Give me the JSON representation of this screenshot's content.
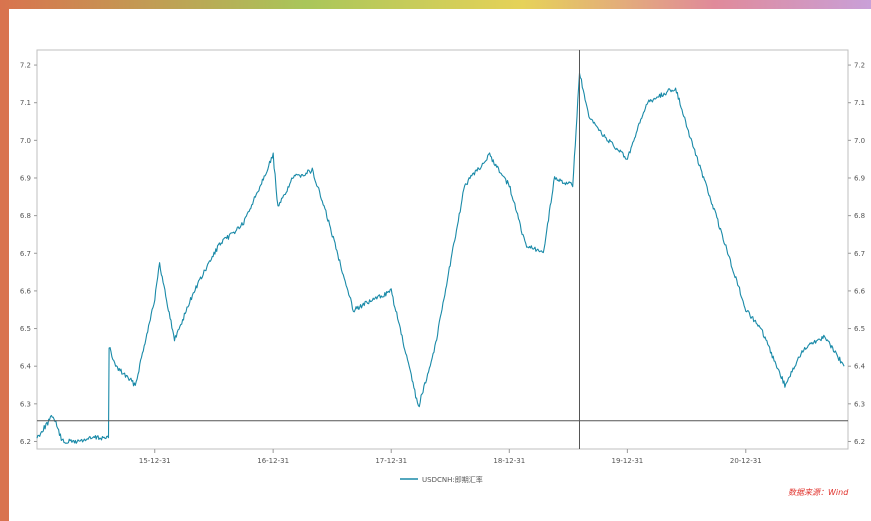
{
  "source_note": "数据来源：Wind",
  "colors": {
    "line": "#1a8aa8",
    "crosshair": "#555555",
    "frame_stripe_start": "#d9734e",
    "frame_stripe_end": "#c9a0d8",
    "source_note": "#e0302a"
  },
  "chart_data": {
    "type": "line",
    "title": "",
    "xlabel": "",
    "ylabel": "",
    "ylim": [
      6.18,
      7.24
    ],
    "y_ticks": [
      "6.2",
      "6.3",
      "6.4",
      "6.5",
      "6.6",
      "6.7",
      "6.8",
      "6.9",
      "7.0",
      "7.1",
      "7.2"
    ],
    "y_ticks_right": [
      "6.2",
      "6.3",
      "6.4",
      "6.5",
      "6.6",
      "6.7",
      "6.8",
      "6.9",
      "7.0",
      "7.1",
      "7.2"
    ],
    "x_ticks": [
      "15-12-31",
      "16-12-31",
      "17-12-31",
      "18-12-31",
      "19-12-31",
      "20-12-31"
    ],
    "grid": false,
    "legend_position": "bottom-center",
    "crosshair": {
      "x": "2019-08-05",
      "y": 6.255
    },
    "series": [
      {
        "name": "USDCNH:即期汇率",
        "x": [
          "2015-01-01",
          "2015-02-20",
          "2015-03-20",
          "2015-05-05",
          "2015-06-25",
          "2015-08-10",
          "2015-08-12",
          "2015-09-01",
          "2015-11-01",
          "2015-12-31",
          "2016-01-15",
          "2016-03-01",
          "2016-05-01",
          "2016-07-15",
          "2016-10-01",
          "2016-12-31",
          "2017-01-15",
          "2017-03-01",
          "2017-05-01",
          "2017-06-15",
          "2017-09-05",
          "2017-12-31",
          "2018-03-25",
          "2018-05-15",
          "2018-08-15",
          "2018-10-31",
          "2018-12-31",
          "2019-02-20",
          "2019-04-15",
          "2019-05-20",
          "2019-07-15",
          "2019-08-05",
          "2019-09-03",
          "2019-11-01",
          "2019-12-31",
          "2020-03-01",
          "2020-05-28",
          "2020-07-15",
          "2020-09-30",
          "2020-12-31",
          "2021-02-15",
          "2021-05-01",
          "2021-07-01",
          "2021-09-01",
          "2021-10-31"
        ],
        "y": [
          6.21,
          6.27,
          6.2,
          6.2,
          6.21,
          6.21,
          6.45,
          6.4,
          6.35,
          6.58,
          6.67,
          6.47,
          6.6,
          6.72,
          6.78,
          6.96,
          6.82,
          6.9,
          6.92,
          6.8,
          6.55,
          6.6,
          6.29,
          6.45,
          6.88,
          6.96,
          6.88,
          6.72,
          6.7,
          6.9,
          6.88,
          7.18,
          7.06,
          7.0,
          6.95,
          7.1,
          7.14,
          7.0,
          6.8,
          6.55,
          6.5,
          6.35,
          6.45,
          6.48,
          6.4
        ]
      }
    ]
  }
}
